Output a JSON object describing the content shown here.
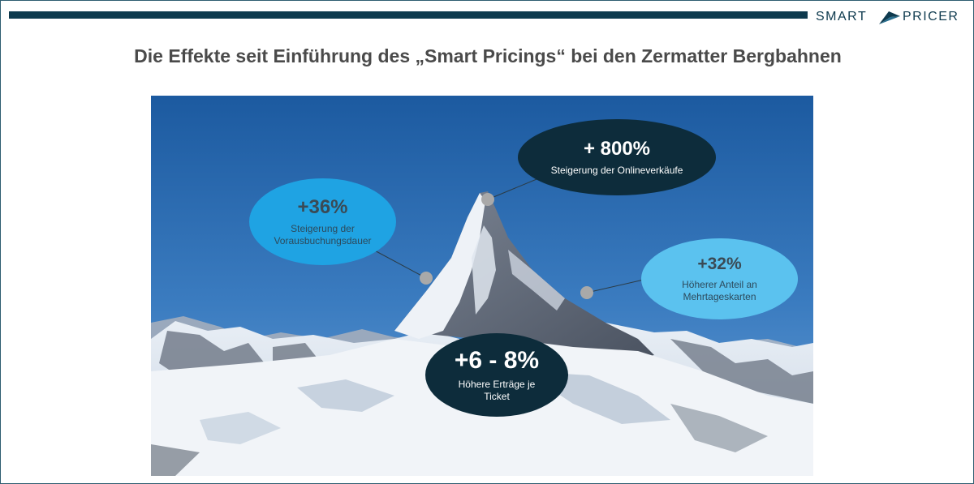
{
  "header": {
    "logo_word1": "SMART",
    "logo_word2": "PRICER",
    "brand_color": "#0e3a4e"
  },
  "title": "Die Effekte seit Einführung des „Smart Pricings“ bei den Zermatter Bergbahnen",
  "image": {
    "subject": "matterhorn-photo"
  },
  "callouts": [
    {
      "value": "+ 800%",
      "label": "Steigerung der Onlineverkäufe",
      "color": "#0d2c3b"
    },
    {
      "value": "+36%",
      "label_line1": "Steigerung der",
      "label_line2": "Vorausbuchungsdauer",
      "color": "#1fa3e3"
    },
    {
      "value": "+32%",
      "label_line1": "Höherer Anteil an",
      "label_line2": "Mehrtageskarten",
      "color": "#5bc2ef"
    },
    {
      "value": "+6 - 8%",
      "label_line1": "Höhere Erträge je",
      "label_line2": "Ticket",
      "color": "#0d2c3b"
    }
  ]
}
